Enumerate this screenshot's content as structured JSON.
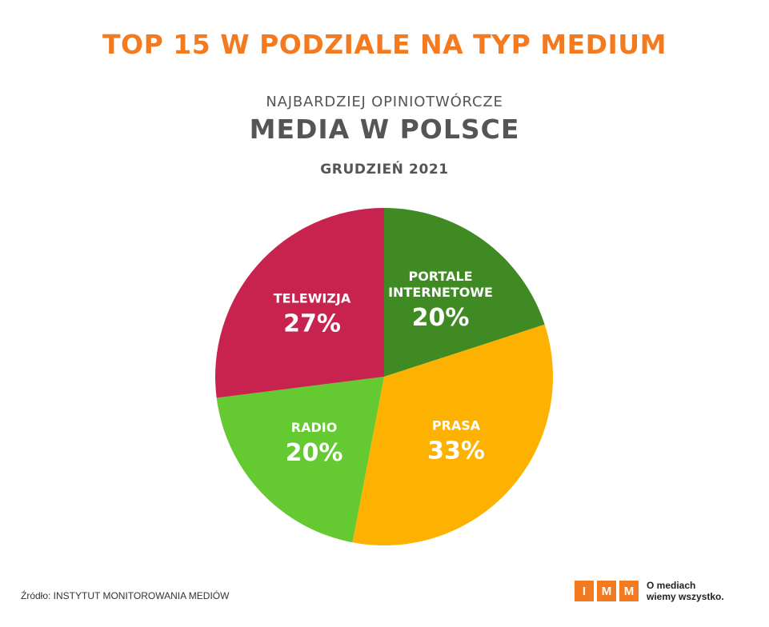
{
  "header": {
    "title": "TOP 15 W PODZIALE NA TYP MEDIUM",
    "subtitle_small": "NAJBARDZIEJ OPINIOTWÓRCZE",
    "subtitle_big": "MEDIA W POLSCE",
    "date": "GRUDZIEŃ 2021"
  },
  "chart_data": {
    "type": "pie",
    "start": "top, clockwise",
    "slices": [
      {
        "label_lines": [
          "PORTALE",
          "INTERNETOWE"
        ],
        "value": 20,
        "value_label": "20%",
        "color": "#3f8a23"
      },
      {
        "label_lines": [
          "PRASA"
        ],
        "value": 33,
        "value_label": "33%",
        "color": "#fdb101"
      },
      {
        "label_lines": [
          "RADIO"
        ],
        "value": 20,
        "value_label": "20%",
        "color": "#65c932"
      },
      {
        "label_lines": [
          "TELEWIZJA"
        ],
        "value": 27,
        "value_label": "27%",
        "color": "#c8224e"
      }
    ]
  },
  "footer": {
    "source": "Źródło: INSTYTUT MONITOROWANIA MEDIÓW",
    "logo_letters": [
      "I",
      "M",
      "M"
    ],
    "tagline_line1": "O mediach",
    "tagline_line2": "wiemy wszystko."
  },
  "colors": {
    "accent": "#f47a1f",
    "text_gray": "#555555"
  }
}
